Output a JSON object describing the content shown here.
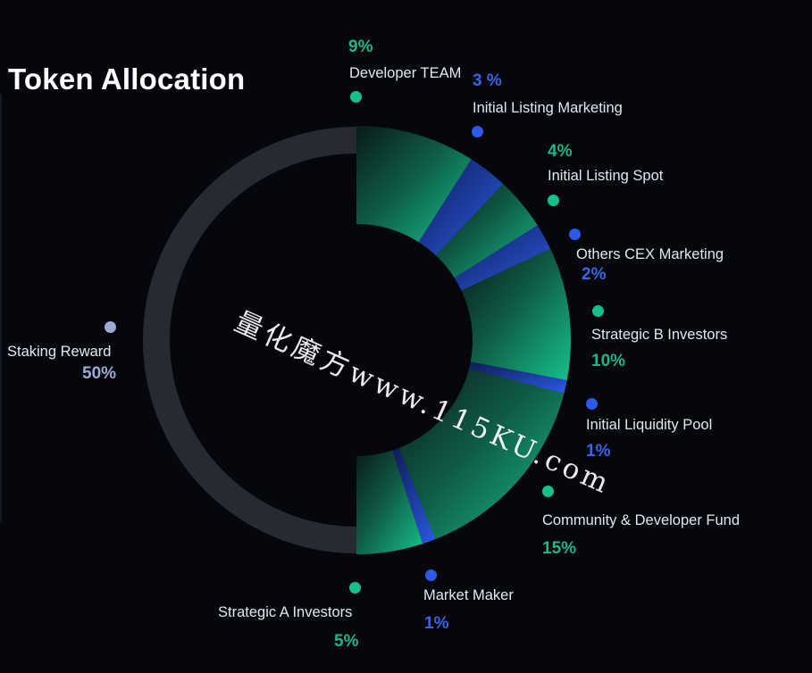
{
  "title": "Token Allocation",
  "watermark": "量化魔方www.115KU.com",
  "colors": {
    "background": "#05070d",
    "green": "#17c08a",
    "blue": "#2c5ae6",
    "staking": "#9ea9d6",
    "track": "#262a33",
    "green_text": "#20b585",
    "blue_text": "#3a64e8"
  },
  "chart_data": {
    "type": "pie",
    "title": "Token Allocation",
    "slices": [
      {
        "label": "Developer TEAM",
        "pct_label": "9%",
        "value": 9,
        "color": "green"
      },
      {
        "label": "Initial Listing Marketing",
        "pct_label": "3 %",
        "value": 3,
        "color": "blue"
      },
      {
        "label": "Initial Listing Spot",
        "pct_label": "4%",
        "value": 4,
        "color": "green"
      },
      {
        "label": "Others CEX Marketing",
        "pct_label": "2%",
        "value": 2,
        "color": "blue"
      },
      {
        "label": "Strategic B Investors",
        "pct_label": "10%",
        "value": 10,
        "color": "green"
      },
      {
        "label": "Initial Liquidity Pool",
        "pct_label": "1%",
        "value": 1,
        "color": "blue"
      },
      {
        "label": "Community & Developer Fund",
        "pct_label": "15%",
        "value": 15,
        "color": "green"
      },
      {
        "label": "Market Maker",
        "pct_label": "1%",
        "value": 1,
        "color": "blue"
      },
      {
        "label": "Strategic A Investors",
        "pct_label": "5%",
        "value": 5,
        "color": "green"
      },
      {
        "label": "Staking Reward",
        "pct_label": "50%",
        "value": 50,
        "color": "staking"
      }
    ]
  }
}
